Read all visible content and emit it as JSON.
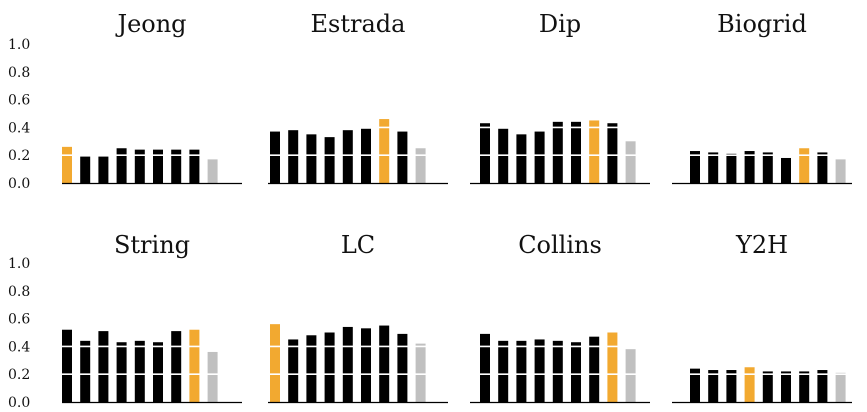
{
  "colors": {
    "default": "#000000",
    "highlight": "#f2a930",
    "last": "#c0c0c0",
    "axis": "#000000",
    "gridline": "#ffffff"
  },
  "chart_data": [
    {
      "type": "bar",
      "title": "Jeong",
      "ylim": [
        0,
        1.0
      ],
      "yticks": [
        "0.0",
        "0.2",
        "0.4",
        "0.6",
        "0.8",
        "1.0"
      ],
      "values": [
        0.26,
        0.19,
        0.19,
        0.25,
        0.24,
        0.24,
        0.24,
        0.24,
        0.17
      ],
      "highlight_index": 0
    },
    {
      "type": "bar",
      "title": "Estrada",
      "ylim": [
        0,
        1.0
      ],
      "values": [
        0.37,
        0.38,
        0.35,
        0.33,
        0.38,
        0.39,
        0.46,
        0.37,
        0.25
      ],
      "highlight_index": 6
    },
    {
      "type": "bar",
      "title": "Dip",
      "ylim": [
        0,
        1.0
      ],
      "values": [
        0.43,
        0.39,
        0.35,
        0.37,
        0.44,
        0.44,
        0.45,
        0.43,
        0.3
      ],
      "highlight_index": 6
    },
    {
      "type": "bar",
      "title": "Biogrid",
      "ylim": [
        0,
        1.0
      ],
      "values": [
        0.23,
        0.22,
        0.21,
        0.23,
        0.22,
        0.18,
        0.25,
        0.22,
        0.17
      ],
      "highlight_index": 6
    },
    {
      "type": "bar",
      "title": "String",
      "ylim": [
        0,
        1.0
      ],
      "yticks": [
        "0.0",
        "0.2",
        "0.4",
        "0.6",
        "0.8",
        "1.0"
      ],
      "values": [
        0.52,
        0.44,
        0.51,
        0.43,
        0.44,
        0.43,
        0.51,
        0.52,
        0.36
      ],
      "highlight_index": 7
    },
    {
      "type": "bar",
      "title": "LC",
      "ylim": [
        0,
        1.0
      ],
      "values": [
        0.56,
        0.45,
        0.48,
        0.5,
        0.54,
        0.53,
        0.55,
        0.49,
        0.42
      ],
      "highlight_index": 0
    },
    {
      "type": "bar",
      "title": "Collins",
      "ylim": [
        0,
        1.0
      ],
      "values": [
        0.49,
        0.44,
        0.44,
        0.45,
        0.44,
        0.43,
        0.47,
        0.5,
        0.38
      ],
      "highlight_index": 7
    },
    {
      "type": "bar",
      "title": "Y2H",
      "ylim": [
        0,
        1.0
      ],
      "values": [
        0.24,
        0.23,
        0.23,
        0.25,
        0.22,
        0.22,
        0.22,
        0.23,
        0.21
      ],
      "highlight_index": 3
    }
  ]
}
